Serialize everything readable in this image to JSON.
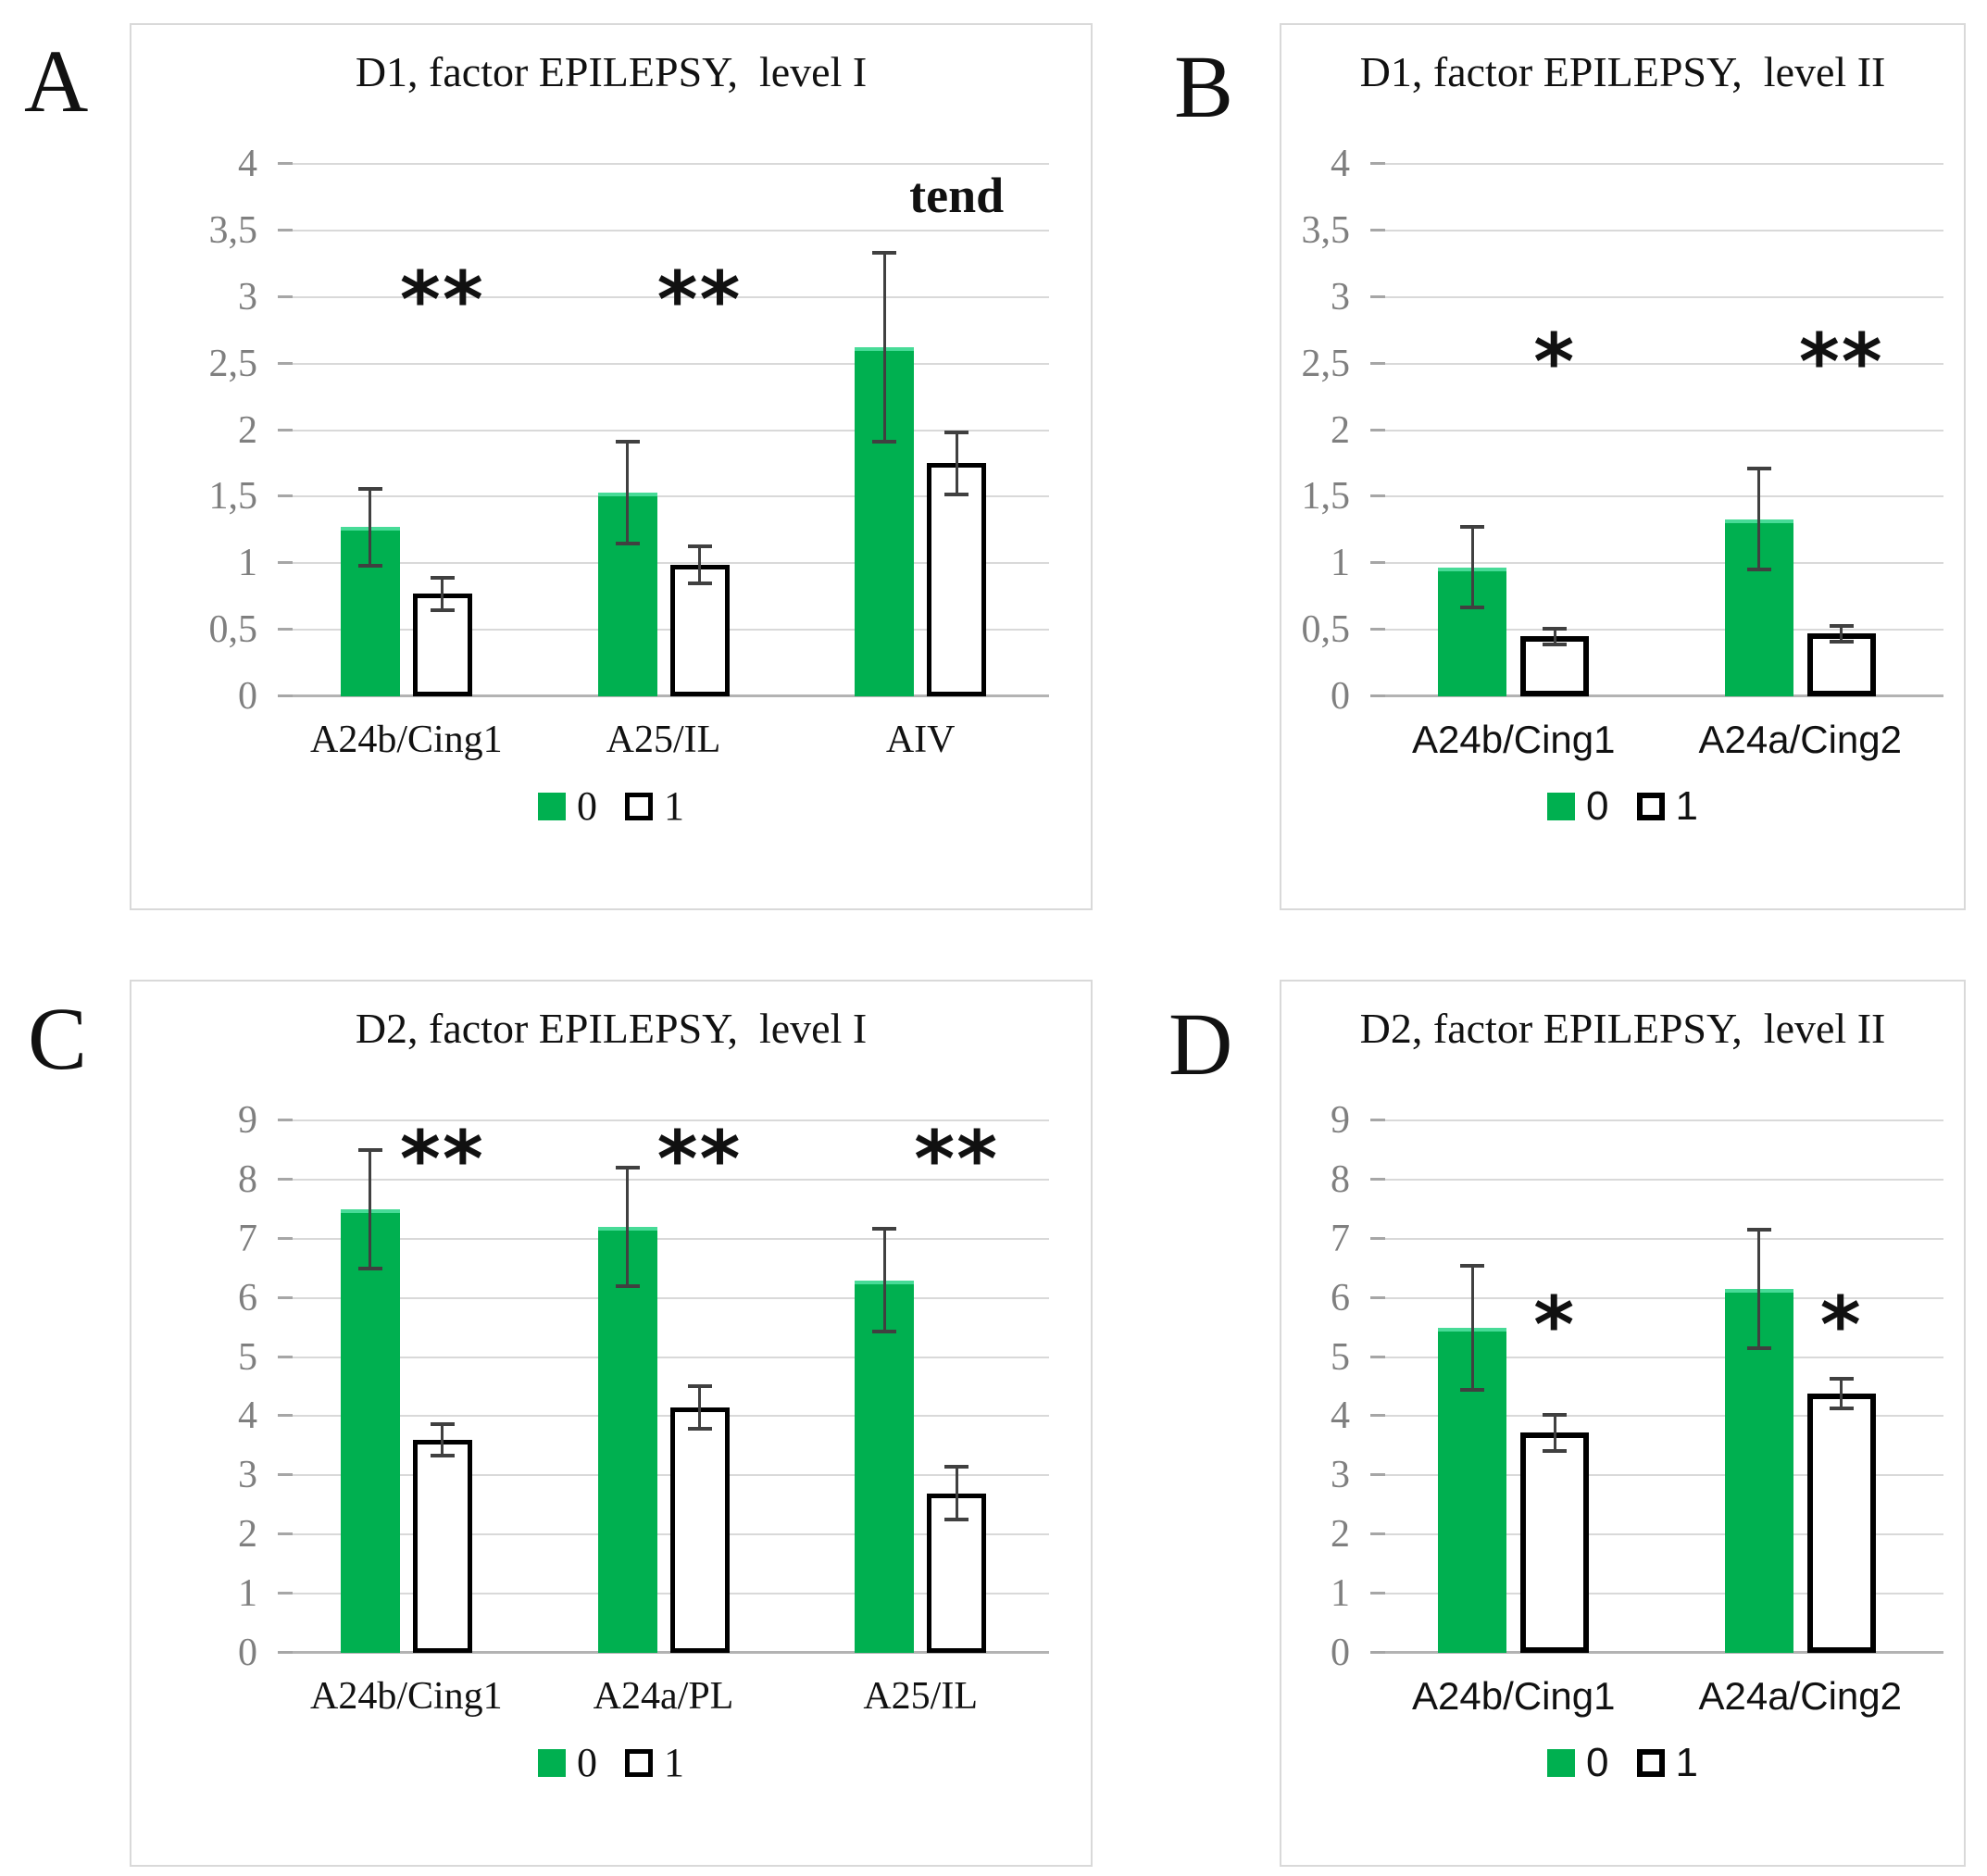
{
  "figure": {
    "colors": {
      "series0_fill": "#00B050",
      "series0_edge_highlight": "#47DB97",
      "series1_fill": "#FFFFFF",
      "series1_border": "#000000",
      "gridline": "#D9D9D9",
      "axis_line": "#B3B3B3",
      "tick_text": "#7F7F7F",
      "error_bar": "#404040",
      "panel_border": "#D9D9D9"
    }
  },
  "chart_data": [
    {
      "type": "bar",
      "panel": "A",
      "title": "D1, factor EPILEPSY,  level I",
      "categories": [
        "A24b/Cing1",
        "A25/IL",
        "AIV"
      ],
      "series": [
        {
          "name": "0",
          "color": "#00B050",
          "values": [
            1.27,
            1.53,
            2.62
          ],
          "errors": [
            0.29,
            0.38,
            0.71
          ]
        },
        {
          "name": "1",
          "color": "#FFFFFF",
          "values": [
            0.77,
            0.99,
            1.75
          ],
          "errors": [
            0.12,
            0.14,
            0.23
          ]
        }
      ],
      "annotations": [
        {
          "text": "**",
          "group": 0,
          "y": 3.05
        },
        {
          "text": "**",
          "group": 1,
          "y": 3.05
        },
        {
          "text": "tend",
          "group": 2,
          "y": 3.72
        }
      ],
      "xlabel": "",
      "ylabel": "",
      "ylim": [
        0,
        4
      ],
      "ytick_step": 0.5,
      "ytick_labels": [
        "4",
        "3,5",
        "3",
        "2,5",
        "2",
        "1,5",
        "1",
        "0,5",
        "0"
      ],
      "grid": true,
      "legend_position": "bottom",
      "label_font": "serif"
    },
    {
      "type": "bar",
      "panel": "B",
      "title": "D1, factor EPILEPSY,  level II",
      "categories": [
        "A24b/Cing1",
        "A24a/Cing2"
      ],
      "series": [
        {
          "name": "0",
          "color": "#00B050",
          "values": [
            0.97,
            1.33
          ],
          "errors": [
            0.3,
            0.38
          ]
        },
        {
          "name": "1",
          "color": "#FFFFFF",
          "values": [
            0.45,
            0.47
          ],
          "errors": [
            0.06,
            0.06
          ]
        }
      ],
      "annotations": [
        {
          "text": "*",
          "group": 0,
          "y": 2.58
        },
        {
          "text": "**",
          "group": 1,
          "y": 2.58
        }
      ],
      "xlabel": "",
      "ylabel": "",
      "ylim": [
        0,
        4
      ],
      "ytick_step": 0.5,
      "ytick_labels": [
        "4",
        "3,5",
        "3",
        "2,5",
        "2",
        "1,5",
        "1",
        "0,5",
        "0"
      ],
      "grid": true,
      "legend_position": "bottom",
      "label_font": "sans"
    },
    {
      "type": "bar",
      "panel": "C",
      "title": "D2, factor EPILEPSY,  level I",
      "categories": [
        "A24b/Cing1",
        "A24a/PL",
        "A25/IL"
      ],
      "series": [
        {
          "name": "0",
          "color": "#00B050",
          "values": [
            7.5,
            7.2,
            6.3
          ],
          "errors": [
            1.0,
            1.0,
            0.87
          ]
        },
        {
          "name": "1",
          "color": "#FFFFFF",
          "values": [
            3.6,
            4.15,
            2.7
          ],
          "errors": [
            0.26,
            0.36,
            0.44
          ]
        }
      ],
      "annotations": [
        {
          "text": "**",
          "group": 0,
          "y": 8.5
        },
        {
          "text": "**",
          "group": 1,
          "y": 8.5
        },
        {
          "text": "**",
          "group": 2,
          "y": 8.5
        }
      ],
      "xlabel": "",
      "ylabel": "",
      "ylim": [
        0,
        9
      ],
      "ytick_step": 1,
      "ytick_labels": [
        "9",
        "8",
        "7",
        "6",
        "5",
        "4",
        "3",
        "2",
        "1",
        "0"
      ],
      "grid": true,
      "legend_position": "bottom",
      "label_font": "serif"
    },
    {
      "type": "bar",
      "panel": "D",
      "title": "D2, factor EPILEPSY,  level II",
      "categories": [
        "A24b/Cing1",
        "A24a/Cing2"
      ],
      "series": [
        {
          "name": "0",
          "color": "#00B050",
          "values": [
            5.5,
            6.15
          ],
          "errors": [
            1.05,
            1.0
          ]
        },
        {
          "name": "1",
          "color": "#FFFFFF",
          "values": [
            3.72,
            4.38
          ],
          "errors": [
            0.3,
            0.25
          ]
        }
      ],
      "annotations": [
        {
          "text": "*",
          "group": 0,
          "y": 5.7
        },
        {
          "text": "*",
          "group": 1,
          "y": 5.7
        }
      ],
      "xlabel": "",
      "ylabel": "",
      "ylim": [
        0,
        9
      ],
      "ytick_step": 1,
      "ytick_labels": [
        "9",
        "8",
        "7",
        "6",
        "5",
        "4",
        "3",
        "2",
        "1",
        "0"
      ],
      "grid": true,
      "legend_position": "bottom",
      "label_font": "sans"
    }
  ]
}
